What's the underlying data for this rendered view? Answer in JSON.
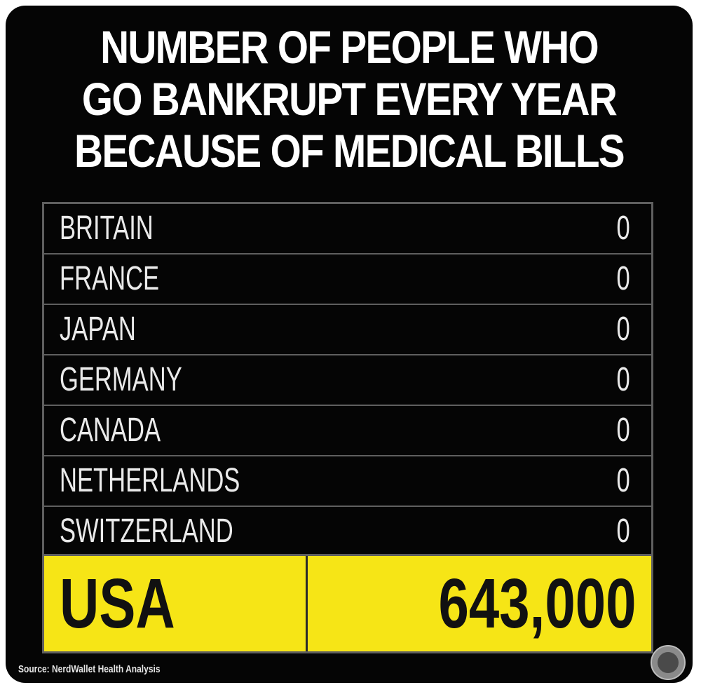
{
  "chart_data": {
    "type": "table",
    "title": [
      "NUMBER OF PEOPLE WHO",
      "GO BANKRUPT EVERY YEAR",
      "BECAUSE OF MEDICAL BILLS"
    ],
    "rows": [
      {
        "country": "BRITAIN",
        "value": "0"
      },
      {
        "country": "FRANCE",
        "value": "0"
      },
      {
        "country": "JAPAN",
        "value": "0"
      },
      {
        "country": "GERMANY",
        "value": "0"
      },
      {
        "country": "CANADA",
        "value": "0"
      },
      {
        "country": "NETHERLANDS",
        "value": "0"
      },
      {
        "country": "SWITZERLAND",
        "value": "0"
      }
    ],
    "highlight": {
      "country": "USA",
      "value": "643,000"
    },
    "source": "Source: NerdWallet Health Analysis"
  },
  "colors": {
    "background": "#050505",
    "highlight": "#f6e516",
    "text": "#eaeaea",
    "grid": "#5f5f5f"
  },
  "logo": {
    "icon": "watermark-seal-icon"
  }
}
